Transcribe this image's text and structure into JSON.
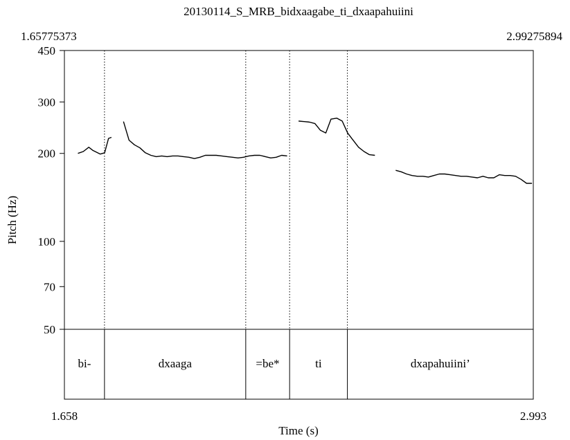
{
  "chart_data": {
    "type": "line",
    "title": "20130114_S_MRB_bidxaagabe_ti_dxaapahuiini",
    "xlabel": "Time (s)",
    "ylabel": "Pitch (Hz)",
    "xlim": [
      1.658,
      2.993
    ],
    "ylim": [
      50,
      450
    ],
    "y_scale": "log",
    "grid": false,
    "x_start_label": "1.65775373",
    "x_end_label": "2.99275894",
    "x_ticks": [
      "1.658",
      "2.993"
    ],
    "y_ticks": [
      {
        "value": 450,
        "label": "450"
      },
      {
        "value": 300,
        "label": "300"
      },
      {
        "value": 200,
        "label": "200"
      },
      {
        "value": 100,
        "label": "100"
      },
      {
        "value": 70,
        "label": "70"
      },
      {
        "value": 50,
        "label": "50"
      }
    ],
    "boundaries": [
      1.7721,
      2.1743,
      2.2992,
      2.4637
    ],
    "segments": [
      {
        "label": "bi-",
        "start": 1.658,
        "end": 1.7721
      },
      {
        "label": "dxaaga",
        "start": 1.7721,
        "end": 2.1743
      },
      {
        "label": "=be*",
        "start": 2.1743,
        "end": 2.2992
      },
      {
        "label": "ti",
        "start": 2.2992,
        "end": 2.4637
      },
      {
        "label": "dxapahuiini’",
        "start": 2.4637,
        "end": 2.993
      }
    ],
    "series": [
      {
        "values": [
          [
            [
              1.6964,
              200
            ],
            [
              1.7119,
              203
            ],
            [
              1.7275,
              210
            ],
            [
              1.7384,
              205
            ],
            [
              1.7601,
              199
            ],
            [
              1.7726,
              201
            ],
            [
              1.7836,
              225
            ],
            [
              1.7918,
              227
            ]
          ],
          [
            [
              1.8263,
              257
            ],
            [
              1.8419,
              222
            ],
            [
              1.8574,
              214
            ],
            [
              1.8729,
              209
            ],
            [
              1.8884,
              201
            ],
            [
              1.904,
              197
            ],
            [
              1.9195,
              195
            ],
            [
              1.935,
              196
            ],
            [
              1.9505,
              195
            ],
            [
              1.9661,
              196
            ],
            [
              1.9816,
              196
            ],
            [
              1.9971,
              195
            ],
            [
              2.0126,
              194
            ],
            [
              2.0282,
              192
            ],
            [
              2.0437,
              194
            ],
            [
              2.0592,
              197
            ],
            [
              2.0747,
              197
            ],
            [
              2.0903,
              197
            ],
            [
              2.1058,
              196
            ],
            [
              2.1213,
              195
            ],
            [
              2.1368,
              194
            ],
            [
              2.1524,
              193
            ],
            [
              2.1679,
              194
            ],
            [
              2.1834,
              196
            ],
            [
              2.1989,
              197
            ],
            [
              2.2145,
              197
            ],
            [
              2.23,
              195
            ],
            [
              2.2455,
              193
            ],
            [
              2.261,
              194
            ],
            [
              2.2766,
              197
            ],
            [
              2.2921,
              196
            ]
          ],
          [
            [
              2.3247,
              258
            ],
            [
              2.3402,
              257
            ],
            [
              2.3557,
              256
            ],
            [
              2.3713,
              253
            ],
            [
              2.3868,
              240
            ],
            [
              2.4023,
              235
            ],
            [
              2.4169,
              262
            ],
            [
              2.4334,
              264
            ],
            [
              2.4489,
              258
            ],
            [
              2.4644,
              235
            ],
            [
              2.48,
              222
            ],
            [
              2.4955,
              210
            ],
            [
              2.511,
              203
            ],
            [
              2.5265,
              198
            ],
            [
              2.5421,
              197
            ]
          ],
          [
            [
              2.6012,
              175
            ],
            [
              2.6167,
              173
            ],
            [
              2.6322,
              170
            ],
            [
              2.6478,
              168
            ],
            [
              2.6633,
              167
            ],
            [
              2.6788,
              167
            ],
            [
              2.6943,
              166
            ],
            [
              2.7099,
              168
            ],
            [
              2.7254,
              170
            ],
            [
              2.7409,
              170
            ],
            [
              2.7564,
              169
            ],
            [
              2.772,
              168
            ],
            [
              2.7875,
              167
            ],
            [
              2.803,
              167
            ],
            [
              2.8185,
              166
            ],
            [
              2.8341,
              165
            ],
            [
              2.8496,
              167
            ],
            [
              2.8651,
              165
            ],
            [
              2.8806,
              165
            ],
            [
              2.8962,
              169
            ],
            [
              2.9117,
              168
            ],
            [
              2.9272,
              168
            ],
            [
              2.9427,
              167
            ],
            [
              2.9583,
              163
            ],
            [
              2.9738,
              158
            ],
            [
              2.9893,
              158
            ]
          ]
        ]
      }
    ]
  }
}
